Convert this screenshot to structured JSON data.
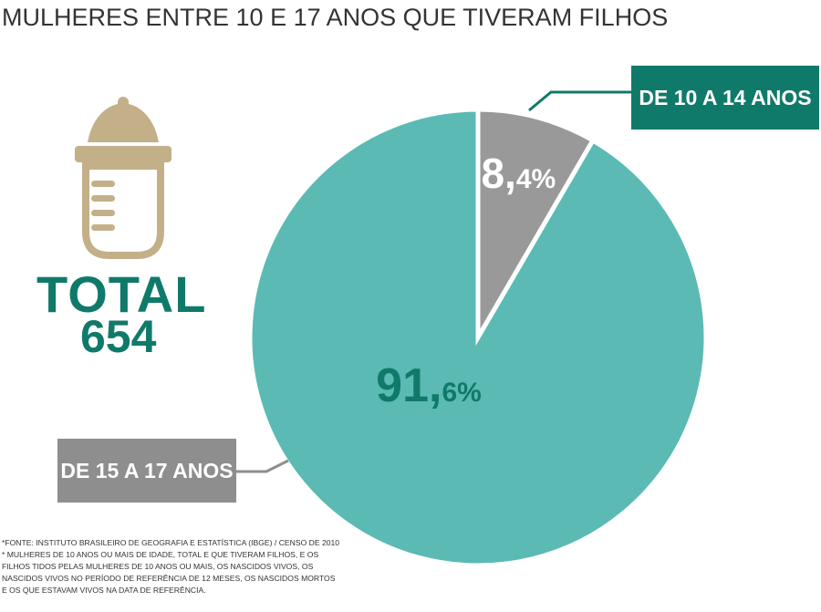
{
  "title": "MULHERES ENTRE 10 E 17 ANOS QUE TIVERAM FILHOS",
  "total": {
    "label": "TOTAL",
    "value": "654"
  },
  "icon": "baby-bottle-icon",
  "colors": {
    "teal_slice": "#5bbab4",
    "gray_slice": "#999999",
    "accent_dark_green": "#107a6a",
    "bottle_gold": "#c3b088",
    "label_box_gray": "#8e8e8e"
  },
  "chart_data": {
    "type": "pie",
    "title": "MULHERES ENTRE 10 E 17 ANOS QUE TIVERAM FILHOS",
    "slices": [
      {
        "label": "DE 10 A 14 ANOS",
        "value": 8.4,
        "display_int": "8,",
        "display_dec": "4%",
        "color": "#999999"
      },
      {
        "label": "DE 15 A 17 ANOS",
        "value": 91.6,
        "display_int": "91,",
        "display_dec": "6%",
        "color": "#5bbab4"
      }
    ]
  },
  "footnotes": [
    "*FONTE: INSTITUTO BRASILEIRO DE GEOGRAFIA E ESTATÍSTICA (IBGE) / CENSO DE 2010",
    "* MULHERES DE 10 ANOS OU MAIS DE IDADE, TOTAL E QUE TIVERAM FILHOS, E OS",
    "FILHOS TIDOS PELAS MULHERES DE 10 ANOS OU MAIS, OS NASCIDOS VIVOS, OS",
    "NASCIDOS VIVOS NO PERÍODO DE REFERÊNCIA DE 12 MESES, OS NASCIDOS MORTOS",
    "E OS QUE ESTAVAM VIVOS NA DATA DE REFERÊNCIA."
  ]
}
